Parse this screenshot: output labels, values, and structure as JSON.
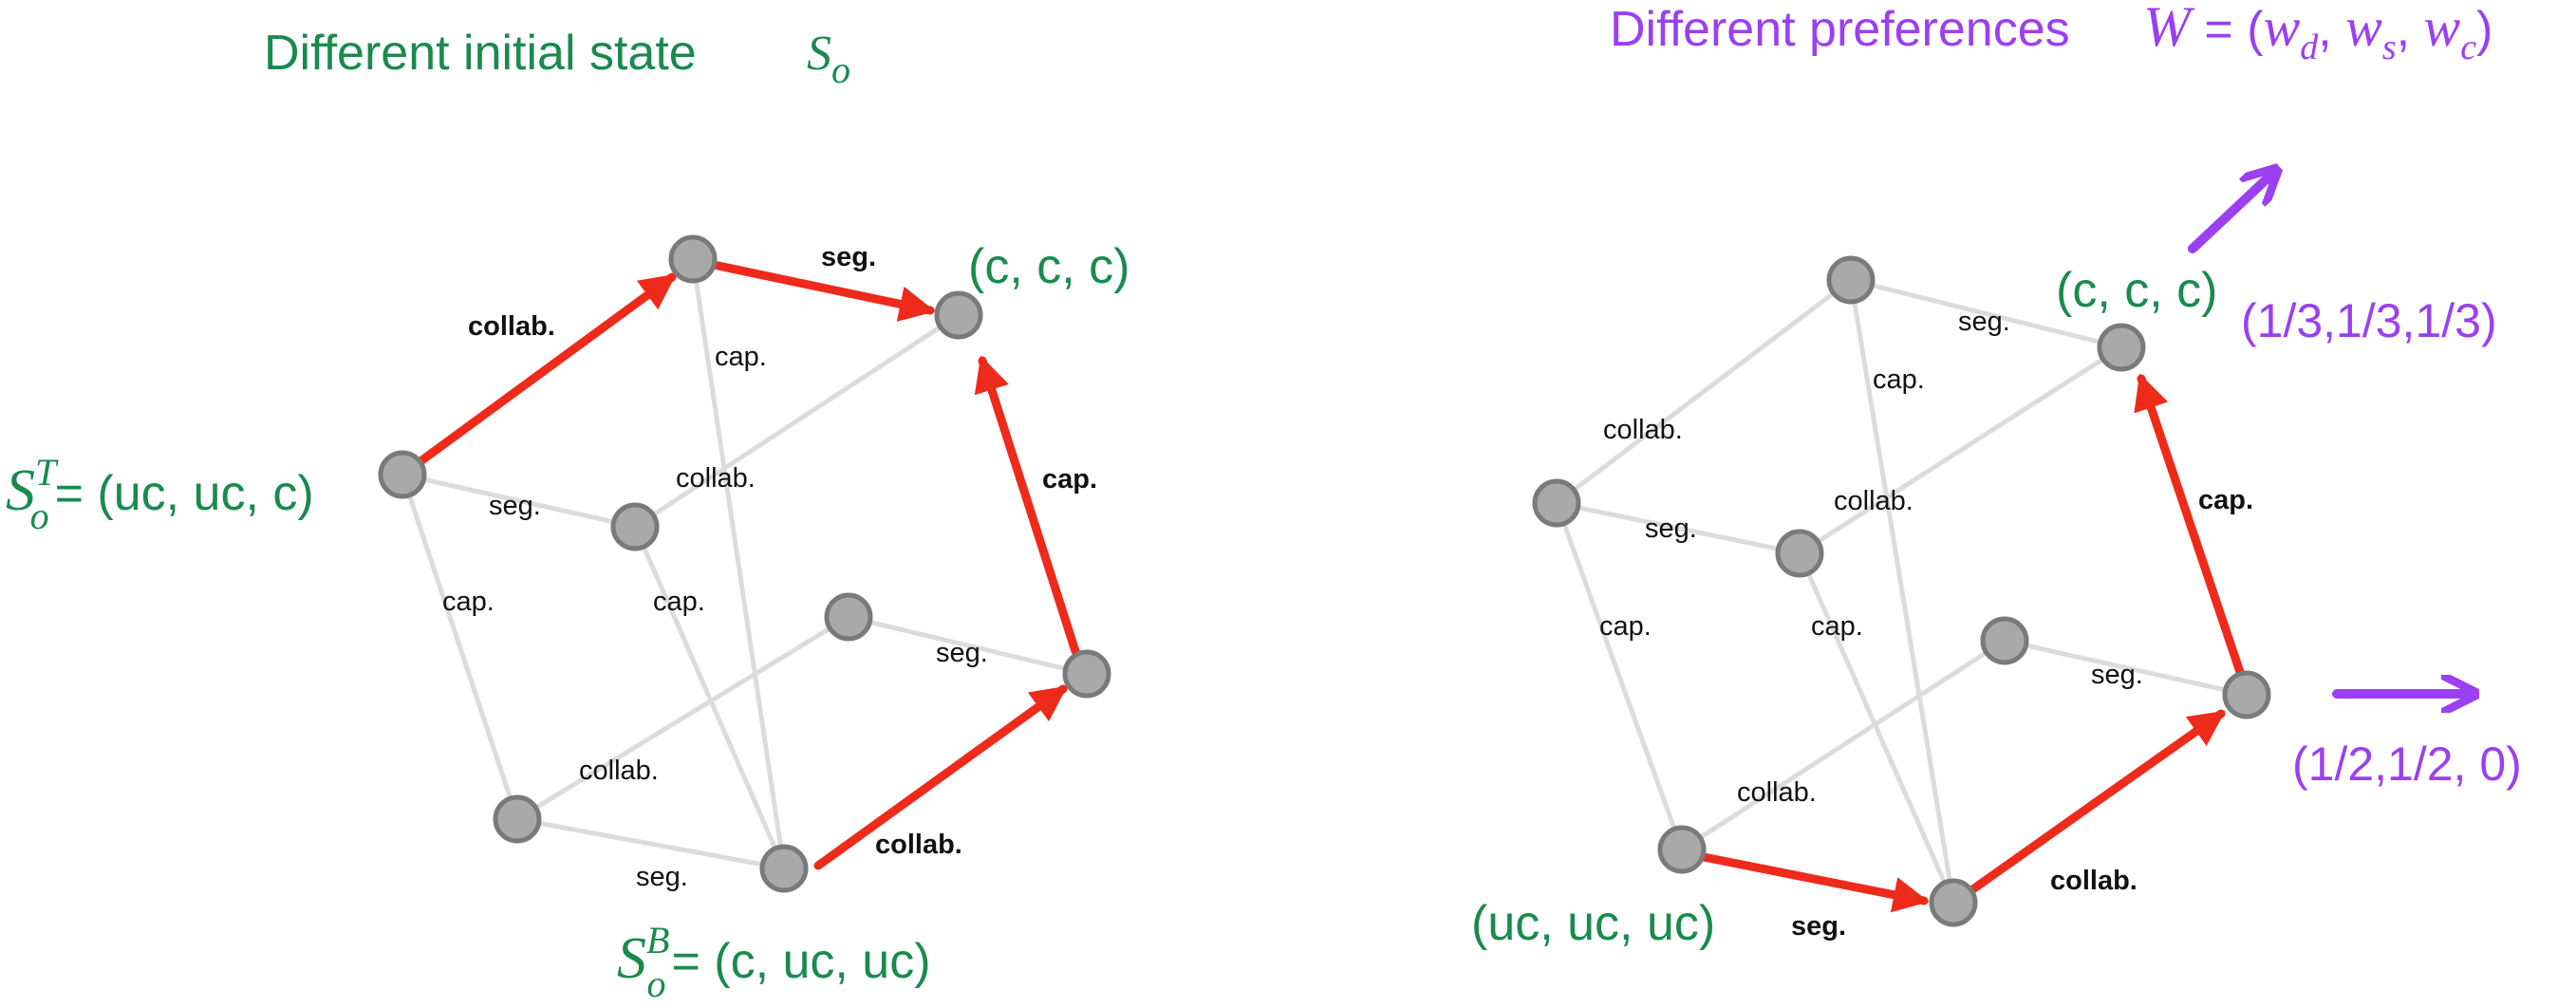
{
  "left_panel": {
    "title": "Different initial state",
    "title_symbol": "S",
    "title_symbol_sub": "o",
    "edge_labels": {
      "top_seg": "seg.",
      "top_collab": "collab.",
      "inner_cap": "cap.",
      "inner_collab": "collab.",
      "right_cap": "cap.",
      "left_seg": "seg.",
      "left_cap": "cap.",
      "mid_cap": "cap.",
      "right_seg": "seg.",
      "bottom_collab": "collab.",
      "bottom_seg": "seg.",
      "bottom_right_collab": "collab."
    },
    "goal_label": "(c, c, c)",
    "start_top": {
      "symbol": "S",
      "sub": "o",
      "sup": "T",
      "value": "= (uc, uc, c)"
    },
    "start_bottom": {
      "symbol": "S",
      "sub": "o",
      "sup": "B",
      "value": "= (c, uc, uc)"
    }
  },
  "right_panel": {
    "title": "Different preferences",
    "title_formula": {
      "lhs": "W",
      "eq": " = (",
      "w1": "w",
      "w1_sub": "d",
      "sep1": ", ",
      "w2": "w",
      "w2_sub": "s",
      "sep2": ", ",
      "w3": "w",
      "w3_sub": "c",
      "close": ")"
    },
    "edge_labels": {
      "top_seg": "seg.",
      "top_collab": "collab.",
      "inner_cap": "cap.",
      "inner_collab": "collab.",
      "right_cap": "cap.",
      "left_seg": "seg.",
      "left_cap": "cap.",
      "mid_cap": "cap.",
      "right_seg": "seg.",
      "bottom_collab": "collab.",
      "bottom_seg": "seg.",
      "bottom_right_collab": "collab."
    },
    "goal_label": "(c, c, c)",
    "start_label": "(uc, uc, uc)",
    "pref_diagonal": "(1/3,1/3,1/3)",
    "pref_horizontal": "(1/2,1/2, 0)"
  },
  "colors": {
    "path_red": "#ee2a1b",
    "grid_grey": "#dcdcdc",
    "node_fill": "#a9a9a9",
    "node_stroke": "#7a7a7a",
    "green_text": "#1a8a4e",
    "purple_text": "#9b3ff2"
  }
}
